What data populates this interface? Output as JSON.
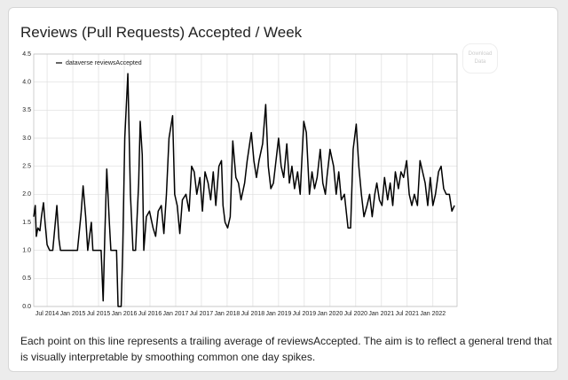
{
  "chart_data": {
    "type": "line",
    "title": "Reviews (Pull Requests) Accepted / Week",
    "description": "Each point on this line represents a trailing average of reviewsAccepted. The aim is to reflect a general trend that is visually interpretable by smoothing common one day spikes.",
    "button": "Download Data",
    "legend": "upper left",
    "grid": true,
    "xlim": [
      2014.24,
      2022.47
    ],
    "xticks": [
      {
        "value": 2014.5,
        "label": "Jul 2014"
      },
      {
        "value": 2015,
        "label": "Jan 2015"
      },
      {
        "value": 2015.5,
        "label": "Jul 2015"
      },
      {
        "value": 2016,
        "label": "Jan 2016"
      },
      {
        "value": 2016.5,
        "label": "Jul 2016"
      },
      {
        "value": 2017,
        "label": "Jan 2017"
      },
      {
        "value": 2017.5,
        "label": "Jul 2017"
      },
      {
        "value": 2018,
        "label": "Jan 2018"
      },
      {
        "value": 2018.5,
        "label": "Jul 2018"
      },
      {
        "value": 2019,
        "label": "Jan 2019"
      },
      {
        "value": 2019.5,
        "label": "Jul 2019"
      },
      {
        "value": 2020,
        "label": "Jan 2020"
      },
      {
        "value": 2020.5,
        "label": "Jul 2020"
      },
      {
        "value": 2021,
        "label": "Jan 2021"
      },
      {
        "value": 2021.5,
        "label": "Jul 2021"
      },
      {
        "value": 2022,
        "label": "Jan 2022"
      }
    ],
    "ylim": [
      0,
      4.5
    ],
    "yticks": [
      {
        "value": 0,
        "label": "0.0"
      },
      {
        "value": 0.5,
        "label": "0.5"
      },
      {
        "value": 1,
        "label": "1.0"
      },
      {
        "value": 1.5,
        "label": "1.5"
      },
      {
        "value": 2,
        "label": "2.0"
      },
      {
        "value": 2.5,
        "label": "2.5"
      },
      {
        "value": 3,
        "label": "3.0"
      },
      {
        "value": 3.5,
        "label": "3.5"
      },
      {
        "value": 4,
        "label": "4.0"
      },
      {
        "value": 4.5,
        "label": "4.5"
      }
    ],
    "x": [
      2014.24,
      2014.27,
      2014.29,
      2014.32,
      2014.36,
      2014.39,
      2014.43,
      2014.46,
      2014.5,
      2014.55,
      2014.61,
      2014.66,
      2014.69,
      2014.73,
      2014.76,
      2015.09,
      2015.16,
      2015.2,
      2015.25,
      2015.29,
      2015.36,
      2015.39,
      2015.55,
      2015.59,
      2015.62,
      2015.66,
      2015.71,
      2015.74,
      2015.85,
      2015.88,
      2015.94,
      2015.97,
      2016.01,
      2016.07,
      2016.12,
      2016.17,
      2016.22,
      2016.28,
      2016.31,
      2016.35,
      2016.38,
      2016.43,
      2016.49,
      2016.56,
      2016.61,
      2016.66,
      2016.72,
      2016.77,
      2016.82,
      2016.87,
      2016.94,
      2016.98,
      2017.03,
      2017.08,
      2017.13,
      2017.2,
      2017.26,
      2017.31,
      2017.36,
      2017.41,
      2017.47,
      2017.52,
      2017.57,
      2017.63,
      2017.68,
      2017.73,
      2017.78,
      2017.84,
      2017.89,
      2017.92,
      2017.96,
      2018.01,
      2018.06,
      2018.11,
      2018.17,
      2018.22,
      2018.27,
      2018.34,
      2018.39,
      2018.47,
      2018.52,
      2018.57,
      2018.62,
      2018.69,
      2018.75,
      2018.8,
      2018.85,
      2018.9,
      2018.95,
      2019.0,
      2019.05,
      2019.1,
      2019.16,
      2019.21,
      2019.26,
      2019.31,
      2019.37,
      2019.42,
      2019.49,
      2019.54,
      2019.6,
      2019.65,
      2019.7,
      2019.75,
      2019.81,
      2019.86,
      2019.91,
      2019.94,
      2020.0,
      2020.07,
      2020.12,
      2020.17,
      2020.22,
      2020.28,
      2020.35,
      2020.4,
      2020.45,
      2020.51,
      2020.56,
      2020.61,
      2020.66,
      2020.72,
      2020.77,
      2020.82,
      2020.87,
      2020.91,
      2020.96,
      2021.01,
      2021.06,
      2021.12,
      2021.17,
      2021.22,
      2021.27,
      2021.33,
      2021.38,
      2021.43,
      2021.49,
      2021.54,
      2021.59,
      2021.64,
      2021.7,
      2021.75,
      2021.8,
      2021.85,
      2021.9,
      2021.95,
      2022.0,
      2022.05,
      2022.11,
      2022.16,
      2022.21,
      2022.26,
      2022.32,
      2022.37,
      2022.42
    ],
    "series": [
      {
        "name": "dataverse reviewsAccepted",
        "color": "#000000",
        "values": [
          1.6,
          1.8,
          1.25,
          1.4,
          1.35,
          1.6,
          1.85,
          1.5,
          1.1,
          1.0,
          1.0,
          1.5,
          1.8,
          1.2,
          1.0,
          1.0,
          1.65,
          2.15,
          1.6,
          1.0,
          1.5,
          1.0,
          1.0,
          0.1,
          1.2,
          2.45,
          1.5,
          1.0,
          1.0,
          0.0,
          0.0,
          1.0,
          3.0,
          4.15,
          2.0,
          1.0,
          1.0,
          2.2,
          3.3,
          2.7,
          1.0,
          1.6,
          1.7,
          1.4,
          1.25,
          1.7,
          1.8,
          1.3,
          2.0,
          3.0,
          3.4,
          2.0,
          1.8,
          1.3,
          1.9,
          2.0,
          1.7,
          2.5,
          2.4,
          2.0,
          2.3,
          1.7,
          2.4,
          2.2,
          1.9,
          2.4,
          1.8,
          2.5,
          2.6,
          1.8,
          1.5,
          1.4,
          1.6,
          2.95,
          2.3,
          2.2,
          1.9,
          2.2,
          2.6,
          3.1,
          2.6,
          2.3,
          2.6,
          2.9,
          3.6,
          2.5,
          2.1,
          2.2,
          2.6,
          3.0,
          2.5,
          2.3,
          2.9,
          2.2,
          2.5,
          2.1,
          2.4,
          2.0,
          3.3,
          3.1,
          2.0,
          2.4,
          2.1,
          2.3,
          2.8,
          2.2,
          2.0,
          2.3,
          2.8,
          2.5,
          2.0,
          2.4,
          1.9,
          2.0,
          1.4,
          1.4,
          2.8,
          3.25,
          2.5,
          2.0,
          1.6,
          1.8,
          2.0,
          1.6,
          2.0,
          2.2,
          1.9,
          1.8,
          2.3,
          1.9,
          2.2,
          1.8,
          2.4,
          2.1,
          2.4,
          2.3,
          2.6,
          2.0,
          1.8,
          2.0,
          1.8,
          2.6,
          2.4,
          2.2,
          1.8,
          2.3,
          1.8,
          2.0,
          2.4,
          2.5,
          2.1,
          2.0,
          2.0,
          1.7,
          1.8
        ]
      }
    ]
  }
}
